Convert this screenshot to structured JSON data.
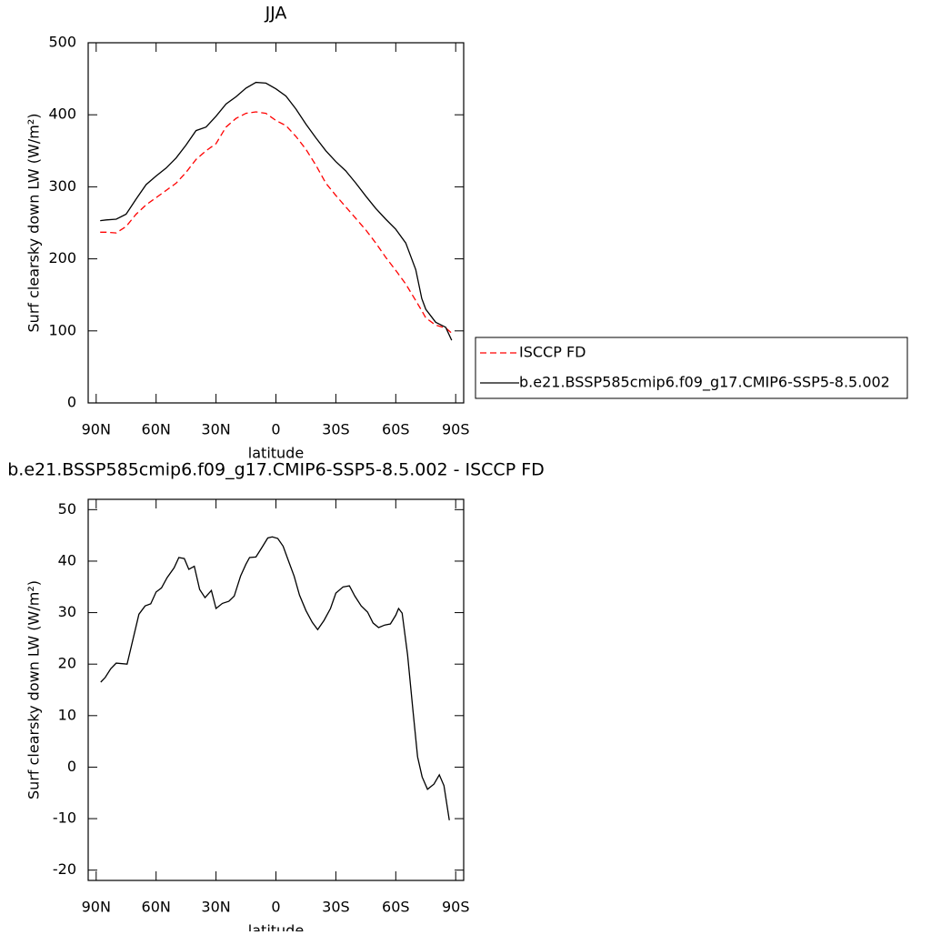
{
  "chart_data": [
    {
      "type": "line",
      "title": "JJA",
      "x_label": "latitude",
      "y_label": "Surf clearsky down LW (W/m²)",
      "x": [
        88,
        85,
        80,
        75,
        70,
        65,
        60,
        55,
        50,
        45,
        40,
        35,
        30,
        25,
        20,
        15,
        10,
        5,
        0,
        -5,
        -10,
        -15,
        -20,
        -25,
        -30,
        -35,
        -40,
        -45,
        -50,
        -55,
        -60,
        -65,
        -70,
        -73,
        -75,
        -80,
        -85,
        -88
      ],
      "series": [
        {
          "name": "ISCCP FD",
          "color": "#ff0000",
          "line_style": "dashed",
          "values": [
            237,
            237,
            236,
            245,
            262,
            275,
            285,
            295,
            305,
            320,
            338,
            350,
            360,
            383,
            395,
            402,
            404,
            402,
            392,
            385,
            370,
            352,
            330,
            305,
            288,
            272,
            256,
            240,
            222,
            202,
            184,
            165,
            142,
            128,
            118,
            108,
            104,
            97
          ]
        },
        {
          "name": "b.e21.BSSP585cmip6.f09_g17.CMIP6-SSP5-8.5.002",
          "color": "#000000",
          "line_style": "solid",
          "values": [
            253,
            254,
            255,
            262,
            283,
            303,
            315,
            326,
            340,
            358,
            378,
            383,
            398,
            415,
            425,
            437,
            445,
            444,
            436,
            426,
            408,
            387,
            368,
            350,
            335,
            322,
            305,
            287,
            270,
            255,
            241,
            222,
            185,
            145,
            130,
            112,
            105,
            87
          ]
        }
      ],
      "xlim": [
        94,
        -94
      ],
      "ylim": [
        0,
        500
      ],
      "xticks": [
        {
          "value": 90,
          "label": "90N"
        },
        {
          "value": 60,
          "label": "60N"
        },
        {
          "value": 30,
          "label": "30N"
        },
        0,
        {
          "value": -30,
          "label": "30S"
        },
        {
          "value": -60,
          "label": "60S"
        },
        {
          "value": -90,
          "label": "90S"
        }
      ],
      "yticks": [
        0,
        100,
        200,
        300,
        400,
        500
      ],
      "legend": "outside-right"
    },
    {
      "type": "line",
      "title": "b.e21.BSSP585cmip6.f09_g17.CMIP6-SSP5-8.5.002 - ISCCP FD",
      "x_label": "latitude",
      "y_label": "Surf clearsky down LW (W/m²)",
      "x": [
        87.7,
        85.5,
        82.7,
        80,
        74.5,
        68.6,
        65.5,
        62.7,
        60,
        57.3,
        54.5,
        51,
        48.6,
        45.9,
        43.6,
        40.9,
        38.2,
        35.5,
        32.3,
        30,
        26.8,
        23.6,
        20.9,
        17.7,
        15,
        13.2,
        10,
        6.8,
        4.1,
        1.8,
        -0.9,
        -3.6,
        -6.4,
        -9.1,
        -11.8,
        -15,
        -18.2,
        -20.9,
        -24.1,
        -27.3,
        -30,
        -33.6,
        -36.8,
        -39.5,
        -42.7,
        -45.9,
        -48.6,
        -51.4,
        -54.5,
        -57.3,
        -60,
        -61.4,
        -63.2,
        -65.9,
        -68.6,
        -70.9,
        -73.2,
        -75.9,
        -79.1,
        -81.8,
        -84.1,
        -86.8
      ],
      "series": [
        {
          "name": null,
          "color": "#000000",
          "line_style": "solid",
          "values": [
            16.5,
            17.4,
            19.1,
            20.2,
            20,
            29.7,
            31.3,
            31.7,
            34,
            34.8,
            36.8,
            38.7,
            40.7,
            40.5,
            38.4,
            39,
            34.5,
            32.9,
            34.3,
            30.8,
            31.8,
            32.2,
            33.2,
            37.1,
            39.4,
            40.7,
            40.8,
            42.8,
            44.5,
            44.7,
            44.4,
            42.9,
            39.9,
            37.1,
            33.4,
            30.4,
            28.1,
            26.7,
            28.5,
            30.8,
            33.8,
            35,
            35.2,
            33.2,
            31.3,
            30.1,
            28,
            27.1,
            27.6,
            27.8,
            29.5,
            30.8,
            29.9,
            21.8,
            11,
            2,
            -1.9,
            -4.3,
            -3.3,
            -1.5,
            -3.6,
            -10.3
          ]
        }
      ],
      "xlim": [
        94,
        -94
      ],
      "ylim": [
        -22,
        52
      ],
      "xticks": [
        {
          "value": 90,
          "label": "90N"
        },
        {
          "value": 60,
          "label": "60N"
        },
        {
          "value": 30,
          "label": "30N"
        },
        0,
        {
          "value": -30,
          "label": "30S"
        },
        {
          "value": -60,
          "label": "60S"
        },
        {
          "value": -90,
          "label": "90S"
        }
      ],
      "yticks": [
        -20,
        -10,
        0,
        10,
        20,
        30,
        40,
        50
      ]
    }
  ]
}
